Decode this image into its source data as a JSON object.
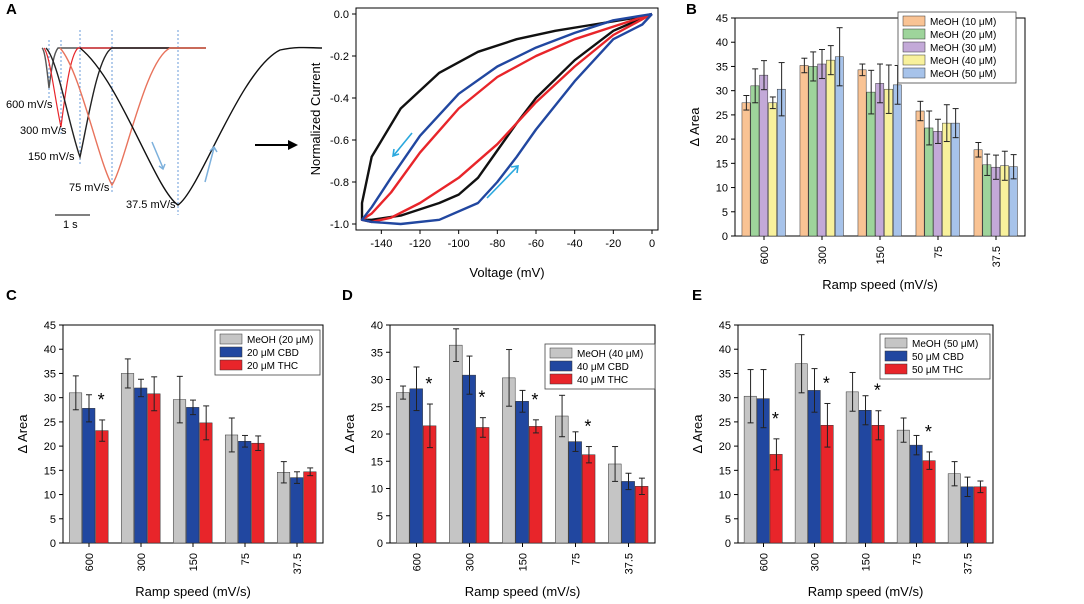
{
  "colors": {
    "meoh_shades": [
      "#f9c394",
      "#9ed49b",
      "#c3a9d8",
      "#f8f19c",
      "#a7c3ea"
    ],
    "meoh": "#c5c5c5",
    "cbd": "#2147a0",
    "thc": "#e8252a",
    "trace_black": "#111111",
    "trace_red": "#e8252a",
    "trace_blue": "#2147a0",
    "arrow_cyan": "#2aa8de"
  },
  "panel_a": {
    "label": "A",
    "traces": {
      "labels": [
        "600 mV/s",
        "300 mV/s",
        "150 mV/s",
        "75 mV/s",
        "37.5 mV/s"
      ],
      "scale_bar": "1 s"
    },
    "ramp_plot": {
      "type": "line",
      "xlabel": "Voltage (mV)",
      "ylabel": "Normalized Current",
      "xlim": [
        -150,
        0
      ],
      "ylim": [
        -1.0,
        0.0
      ],
      "xticks": [
        "-140",
        "-120",
        "-100",
        "-80",
        "-60",
        "-40",
        "-20",
        "0"
      ],
      "xtick_values": [
        -140,
        -120,
        -100,
        -80,
        -60,
        -40,
        -20,
        0
      ],
      "yticks": [
        "0.0",
        "-0.2",
        "-0.4",
        "-0.6",
        "-0.8",
        "-1.0"
      ],
      "ytick_values": [
        0.0,
        -0.2,
        -0.4,
        -0.6,
        -0.8,
        -1.0
      ],
      "series": [
        {
          "name": "black",
          "color": "#111111",
          "x": [
            0,
            -10,
            -30,
            -50,
            -70,
            -90,
            -110,
            -130,
            -145,
            -150,
            -150,
            -145,
            -130,
            -110,
            -100,
            -90,
            -80,
            -70,
            -60,
            -40,
            -20,
            0
          ],
          "y": [
            0,
            -0.02,
            -0.05,
            -0.08,
            -0.12,
            -0.18,
            -0.28,
            -0.45,
            -0.68,
            -0.9,
            -0.98,
            -0.98,
            -0.96,
            -0.9,
            -0.86,
            -0.78,
            -0.65,
            -0.52,
            -0.4,
            -0.22,
            -0.08,
            0
          ]
        },
        {
          "name": "red",
          "color": "#e8252a",
          "x": [
            0,
            -20,
            -40,
            -60,
            -80,
            -100,
            -120,
            -135,
            -145,
            -150,
            -145,
            -135,
            -120,
            -100,
            -80,
            -60,
            -40,
            -20,
            0
          ],
          "y": [
            0,
            -0.06,
            -0.12,
            -0.2,
            -0.3,
            -0.45,
            -0.66,
            -0.85,
            -0.95,
            -0.98,
            -0.99,
            -0.97,
            -0.9,
            -0.78,
            -0.62,
            -0.42,
            -0.25,
            -0.1,
            0
          ]
        },
        {
          "name": "blue",
          "color": "#2147a0",
          "x": [
            0,
            -20,
            -40,
            -60,
            -80,
            -100,
            -120,
            -135,
            -145,
            -150,
            -145,
            -130,
            -110,
            -90,
            -80,
            -70,
            -60,
            -40,
            -20,
            -5,
            0
          ],
          "y": [
            0,
            -0.03,
            -0.09,
            -0.16,
            -0.25,
            -0.38,
            -0.58,
            -0.78,
            -0.92,
            -0.98,
            -0.99,
            -1.0,
            -0.98,
            -0.9,
            -0.8,
            -0.68,
            -0.55,
            -0.32,
            -0.12,
            -0.05,
            0
          ]
        }
      ]
    }
  },
  "chart_data": [
    {
      "panel": "B",
      "type": "bar",
      "xlabel": "Ramp speed (mV/s)",
      "ylabel": "Δ Area",
      "ylim": [
        0,
        45
      ],
      "yticks": [
        "0",
        "5",
        "10",
        "15",
        "20",
        "25",
        "30",
        "35",
        "40",
        "45"
      ],
      "ytick_values": [
        0,
        5,
        10,
        15,
        20,
        25,
        30,
        35,
        40,
        45
      ],
      "categories": [
        "600",
        "300",
        "150",
        "75",
        "37.5"
      ],
      "series": [
        {
          "name": "MeOH (10 μM)",
          "color": "#f9c394",
          "values": [
            27.5,
            35.2,
            34.3,
            25.8,
            17.8
          ],
          "errors": [
            1.5,
            1.5,
            1.2,
            2.0,
            1.5
          ]
        },
        {
          "name": "MeOH (20 μM)",
          "color": "#9ed49b",
          "values": [
            31.0,
            35.0,
            29.7,
            22.3,
            14.7
          ],
          "errors": [
            3.5,
            3.0,
            4.5,
            3.5,
            2.2
          ]
        },
        {
          "name": "MeOH (30 μM)",
          "color": "#c3a9d8",
          "values": [
            33.2,
            35.5,
            31.5,
            21.6,
            14.2
          ],
          "errors": [
            3.0,
            3.0,
            4.0,
            2.5,
            2.5
          ]
        },
        {
          "name": "MeOH (40 μM)",
          "color": "#f8f19c",
          "values": [
            27.5,
            36.3,
            30.3,
            23.3,
            14.5
          ],
          "errors": [
            1.2,
            3.0,
            5.0,
            3.8,
            3.0
          ]
        },
        {
          "name": "MeOH (50 μM)",
          "color": "#a7c3ea",
          "values": [
            30.3,
            37.0,
            31.2,
            23.3,
            14.3
          ],
          "errors": [
            5.5,
            6.0,
            4.0,
            3.0,
            2.5
          ]
        }
      ]
    },
    {
      "panel": "C",
      "type": "bar",
      "xlabel": "Ramp speed (mV/s)",
      "ylabel": "Δ Area",
      "ylim": [
        0,
        45
      ],
      "yticks": [
        "0",
        "5",
        "10",
        "15",
        "20",
        "25",
        "30",
        "35",
        "40",
        "45"
      ],
      "ytick_values": [
        0,
        5,
        10,
        15,
        20,
        25,
        30,
        35,
        40,
        45
      ],
      "categories": [
        "600",
        "300",
        "150",
        "75",
        "37.5"
      ],
      "series": [
        {
          "name": "MeOH (20 μM)",
          "color": "#c5c5c5",
          "values": [
            31.0,
            35.0,
            29.6,
            22.3,
            14.6
          ],
          "errors": [
            3.5,
            3.0,
            4.8,
            3.5,
            2.2
          ]
        },
        {
          "name": "20 μM CBD",
          "color": "#2147a0",
          "values": [
            27.8,
            32.0,
            28.0,
            21.0,
            13.5
          ],
          "errors": [
            2.8,
            1.8,
            1.5,
            1.2,
            1.2
          ]
        },
        {
          "name": "20 μM THC",
          "color": "#e8252a",
          "values": [
            23.2,
            30.8,
            24.8,
            20.6,
            14.7
          ],
          "errors": [
            2.2,
            3.5,
            3.5,
            1.5,
            0.8
          ]
        }
      ],
      "annotations": [
        {
          "text": "*",
          "category": "600"
        }
      ]
    },
    {
      "panel": "D",
      "type": "bar",
      "xlabel": "Ramp speed (mV/s)",
      "ylabel": "Δ Area",
      "ylim": [
        0,
        40
      ],
      "yticks": [
        "0",
        "5",
        "10",
        "15",
        "20",
        "25",
        "30",
        "35",
        "40"
      ],
      "ytick_values": [
        0,
        5,
        10,
        15,
        20,
        25,
        30,
        35,
        40
      ],
      "categories": [
        "600",
        "300",
        "150",
        "75",
        "37.5"
      ],
      "series": [
        {
          "name": "MeOH (40 μM)",
          "color": "#c5c5c5",
          "values": [
            27.6,
            36.3,
            30.3,
            23.3,
            14.5
          ],
          "errors": [
            1.2,
            3.0,
            5.2,
            3.8,
            3.2
          ]
        },
        {
          "name": "40 μM CBD",
          "color": "#2147a0",
          "values": [
            28.3,
            30.8,
            26.0,
            18.6,
            11.3
          ],
          "errors": [
            4.0,
            3.5,
            2.0,
            1.8,
            1.5
          ]
        },
        {
          "name": "40 μM THC",
          "color": "#e8252a",
          "values": [
            21.5,
            21.2,
            21.4,
            16.2,
            10.4
          ],
          "errors": [
            4.0,
            1.8,
            1.2,
            1.5,
            1.5
          ]
        }
      ],
      "annotations": [
        {
          "text": "*",
          "category": "600"
        },
        {
          "text": "*",
          "category": "300"
        },
        {
          "text": "*",
          "category": "150"
        },
        {
          "text": "*",
          "category": "75"
        }
      ]
    },
    {
      "panel": "E",
      "type": "bar",
      "xlabel": "Ramp speed (mV/s)",
      "ylabel": "Δ Area",
      "ylim": [
        0,
        45
      ],
      "yticks": [
        "0",
        "5",
        "10",
        "15",
        "20",
        "25",
        "30",
        "35",
        "40",
        "45"
      ],
      "ytick_values": [
        0,
        5,
        10,
        15,
        20,
        25,
        30,
        35,
        40,
        45
      ],
      "categories": [
        "600",
        "300",
        "150",
        "75",
        "37.5"
      ],
      "series": [
        {
          "name": "MeOH (50 μM)",
          "color": "#c5c5c5",
          "values": [
            30.3,
            37.0,
            31.2,
            23.3,
            14.3
          ],
          "errors": [
            5.5,
            6.0,
            4.0,
            2.5,
            2.5
          ]
        },
        {
          "name": "50 μM CBD",
          "color": "#2147a0",
          "values": [
            29.8,
            31.5,
            27.4,
            20.2,
            11.6
          ],
          "errors": [
            6.0,
            4.5,
            3.0,
            2.0,
            2.0
          ]
        },
        {
          "name": "50 μM THC",
          "color": "#e8252a",
          "values": [
            18.3,
            24.3,
            24.3,
            17.0,
            11.6
          ],
          "errors": [
            3.2,
            4.5,
            3.0,
            1.8,
            1.2
          ]
        }
      ],
      "annotations": [
        {
          "text": "*",
          "category": "600"
        },
        {
          "text": "*",
          "category": "300"
        },
        {
          "text": "*",
          "category": "150"
        },
        {
          "text": "*",
          "category": "75"
        }
      ]
    }
  ]
}
